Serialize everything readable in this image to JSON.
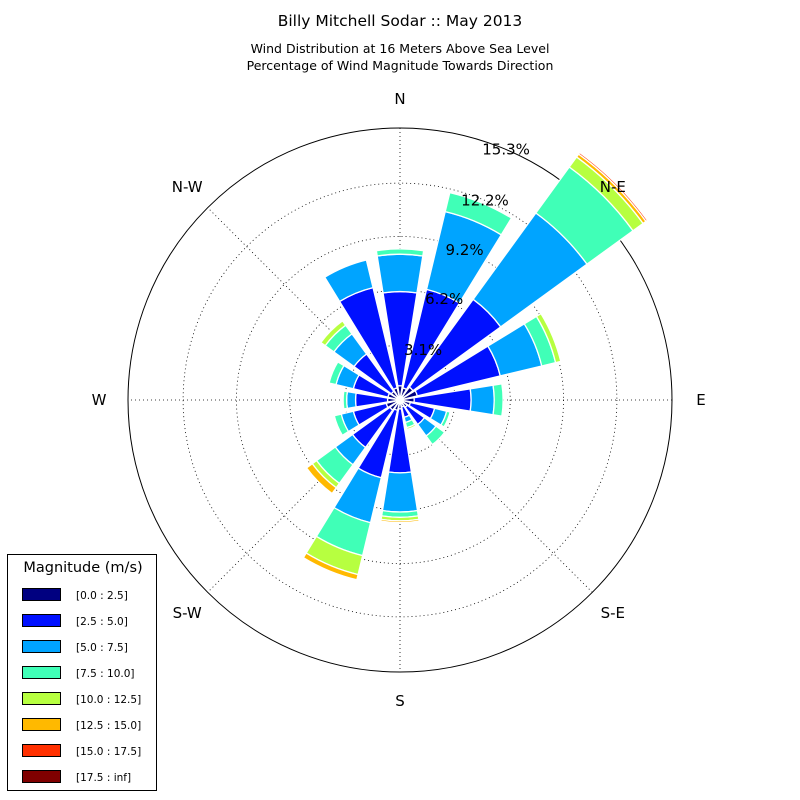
{
  "title": "Billy Mitchell Sodar :: May 2013",
  "subtitle_line1": "Wind Distribution at 16 Meters Above Sea Level",
  "subtitle_line2": "Percentage of Wind Magnitude Towards Direction",
  "chart_data": {
    "type": "windrose",
    "title": "Billy Mitchell Sodar :: May 2013",
    "subtitle": [
      "Wind Distribution at 16 Meters Above Sea Level",
      "Percentage of Wind Magnitude Towards Direction"
    ],
    "unit": "%",
    "radial_max": 15.3,
    "radial_ticks": [
      3.1,
      6.2,
      9.2,
      12.2,
      15.3
    ],
    "direction_labels": [
      "N",
      "N-E",
      "E",
      "S-E",
      "S",
      "S-W",
      "W",
      "N-W"
    ],
    "sectors": [
      "0",
      "22.5",
      "45",
      "67.5",
      "90",
      "112.5",
      "135",
      "157.5",
      "180",
      "202.5",
      "225",
      "247.5",
      "270",
      "292.5",
      "315",
      "337.5"
    ],
    "series": [
      {
        "name": "[0.0 : 2.5]",
        "color": "#000080",
        "values": [
          0.8,
          0.7,
          0.9,
          1.0,
          0.8,
          0.6,
          0.5,
          0.4,
          0.5,
          0.6,
          0.7,
          0.8,
          0.7,
          0.7,
          0.6,
          0.7
        ]
      },
      {
        "name": "[2.5 : 5.0]",
        "color": "#0010ff",
        "values": [
          5.3,
          5.7,
          6.1,
          4.8,
          3.2,
          1.4,
          1.2,
          0.6,
          3.6,
          3.9,
          2.6,
          1.9,
          1.8,
          2.0,
          2.6,
          5.8
        ]
      },
      {
        "name": "[5.0 : 7.5]",
        "color": "#00a4ff",
        "values": [
          2.1,
          4.5,
          6.0,
          2.4,
          1.3,
          0.7,
          0.8,
          0.3,
          2.2,
          2.6,
          1.2,
          0.7,
          0.5,
          1.0,
          1.4,
          1.6
        ]
      },
      {
        "name": "[7.5 : 10.0]",
        "color": "#40ffb7",
        "values": [
          0.3,
          1.1,
          3.2,
          0.8,
          0.5,
          0.2,
          0.6,
          0.3,
          0.3,
          1.9,
          1.3,
          0.4,
          0.2,
          0.4,
          0.6,
          0.0
        ]
      },
      {
        "name": "[10.0 : 12.5]",
        "color": "#b7ff40",
        "values": [
          0.0,
          0.0,
          0.7,
          0.3,
          0.0,
          0.0,
          0.0,
          0.1,
          0.2,
          1.1,
          0.3,
          0.0,
          0.0,
          0.0,
          0.3,
          0.0
        ]
      },
      {
        "name": "[12.5 : 15.0]",
        "color": "#ffb900",
        "values": [
          0.0,
          0.0,
          0.2,
          0.0,
          0.0,
          0.0,
          0.0,
          0.0,
          0.1,
          0.3,
          0.4,
          0.0,
          0.0,
          0.0,
          0.0,
          0.0
        ]
      },
      {
        "name": "[15.0 : 17.5]",
        "color": "#ff3000",
        "values": [
          0.0,
          0.0,
          0.1,
          0.0,
          0.0,
          0.0,
          0.0,
          0.0,
          0.0,
          0.0,
          0.0,
          0.0,
          0.0,
          0.0,
          0.0,
          0.0
        ]
      },
      {
        "name": "[17.5 : inf]",
        "color": "#800000",
        "values": [
          0.0,
          0.0,
          0.0,
          0.0,
          0.0,
          0.0,
          0.0,
          0.0,
          0.0,
          0.0,
          0.0,
          0.0,
          0.0,
          0.0,
          0.0,
          0.0
        ]
      }
    ]
  },
  "legend": {
    "title": "Magnitude (m/s)",
    "items": [
      {
        "label": "[0.0 : 2.5]",
        "color": "#000080"
      },
      {
        "label": "[2.5 : 5.0]",
        "color": "#0010ff"
      },
      {
        "label": "[5.0 : 7.5]",
        "color": "#00a4ff"
      },
      {
        "label": "[7.5 : 10.0]",
        "color": "#40ffb7"
      },
      {
        "label": "[10.0 : 12.5]",
        "color": "#b7ff40"
      },
      {
        "label": "[12.5 : 15.0]",
        "color": "#ffb900"
      },
      {
        "label": "[15.0 : 17.5]",
        "color": "#ff3000"
      },
      {
        "label": "[17.5 : inf]",
        "color": "#800000"
      }
    ]
  }
}
